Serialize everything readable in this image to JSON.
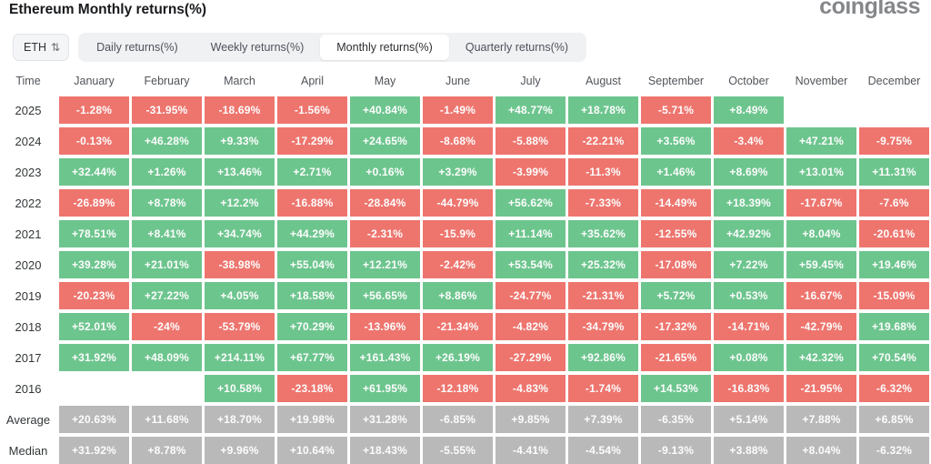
{
  "header": {
    "title": "Ethereum Monthly returns(%)",
    "logo": "coinglass"
  },
  "controls": {
    "symbol": "ETH",
    "updown_icon": "⇅",
    "tabs": [
      {
        "label": "Daily returns(%)",
        "active": false
      },
      {
        "label": "Weekly returns(%)",
        "active": false
      },
      {
        "label": "Monthly returns(%)",
        "active": true
      },
      {
        "label": "Quarterly returns(%)",
        "active": false
      }
    ]
  },
  "colors": {
    "positive": "#6dc58e",
    "negative": "#ee756e",
    "summary": "#b9b9b9"
  },
  "chart_data": {
    "type": "table",
    "title": "Ethereum Monthly returns(%)",
    "time_label": "Time",
    "columns": [
      "January",
      "February",
      "March",
      "April",
      "May",
      "June",
      "July",
      "August",
      "September",
      "October",
      "November",
      "December"
    ],
    "rows": [
      {
        "label": "2025",
        "type": "year",
        "values": [
          "-1.28%",
          "-31.95%",
          "-18.69%",
          "-1.56%",
          "+40.84%",
          "-1.49%",
          "+48.77%",
          "+18.78%",
          "-5.71%",
          "+8.49%",
          "",
          ""
        ]
      },
      {
        "label": "2024",
        "type": "year",
        "values": [
          "-0.13%",
          "+46.28%",
          "+9.33%",
          "-17.29%",
          "+24.65%",
          "-8.68%",
          "-5.88%",
          "-22.21%",
          "+3.56%",
          "-3.4%",
          "+47.21%",
          "-9.75%"
        ]
      },
      {
        "label": "2023",
        "type": "year",
        "values": [
          "+32.44%",
          "+1.26%",
          "+13.46%",
          "+2.71%",
          "+0.16%",
          "+3.29%",
          "-3.99%",
          "-11.3%",
          "+1.46%",
          "+8.69%",
          "+13.01%",
          "+11.31%"
        ]
      },
      {
        "label": "2022",
        "type": "year",
        "values": [
          "-26.89%",
          "+8.78%",
          "+12.2%",
          "-16.88%",
          "-28.84%",
          "-44.79%",
          "+56.62%",
          "-7.33%",
          "-14.49%",
          "+18.39%",
          "-17.67%",
          "-7.6%"
        ]
      },
      {
        "label": "2021",
        "type": "year",
        "values": [
          "+78.51%",
          "+8.41%",
          "+34.74%",
          "+44.29%",
          "-2.31%",
          "-15.9%",
          "+11.14%",
          "+35.62%",
          "-12.55%",
          "+42.92%",
          "+8.04%",
          "-20.61%"
        ]
      },
      {
        "label": "2020",
        "type": "year",
        "values": [
          "+39.28%",
          "+21.01%",
          "-38.98%",
          "+55.04%",
          "+12.21%",
          "-2.42%",
          "+53.54%",
          "+25.32%",
          "-17.08%",
          "+7.22%",
          "+59.45%",
          "+19.46%"
        ]
      },
      {
        "label": "2019",
        "type": "year",
        "values": [
          "-20.23%",
          "+27.22%",
          "+4.05%",
          "+18.58%",
          "+56.65%",
          "+8.86%",
          "-24.77%",
          "-21.31%",
          "+5.72%",
          "+0.53%",
          "-16.67%",
          "-15.09%"
        ]
      },
      {
        "label": "2018",
        "type": "year",
        "values": [
          "+52.01%",
          "-24%",
          "-53.79%",
          "+70.29%",
          "-13.96%",
          "-21.34%",
          "-4.82%",
          "-34.79%",
          "-17.32%",
          "-14.71%",
          "-42.79%",
          "+19.68%"
        ]
      },
      {
        "label": "2017",
        "type": "year",
        "values": [
          "+31.92%",
          "+48.09%",
          "+214.11%",
          "+67.77%",
          "+161.43%",
          "+26.19%",
          "-27.29%",
          "+92.86%",
          "-21.65%",
          "+0.08%",
          "+42.32%",
          "+70.54%"
        ]
      },
      {
        "label": "2016",
        "type": "year",
        "values": [
          "",
          "",
          "+10.58%",
          "-23.18%",
          "+61.95%",
          "-12.18%",
          "-4.83%",
          "-1.74%",
          "+14.53%",
          "-16.83%",
          "-21.95%",
          "-6.32%"
        ]
      },
      {
        "label": "Average",
        "type": "summary",
        "values": [
          "+20.63%",
          "+11.68%",
          "+18.70%",
          "+19.98%",
          "+31.28%",
          "-6.85%",
          "+9.85%",
          "+7.39%",
          "-6.35%",
          "+5.14%",
          "+7.88%",
          "+6.85%"
        ]
      },
      {
        "label": "Median",
        "type": "summary",
        "values": [
          "+31.92%",
          "+8.78%",
          "+9.96%",
          "+10.64%",
          "+18.43%",
          "-5.55%",
          "-4.41%",
          "-4.54%",
          "-9.13%",
          "+3.88%",
          "+8.04%",
          "-6.32%"
        ]
      }
    ]
  }
}
